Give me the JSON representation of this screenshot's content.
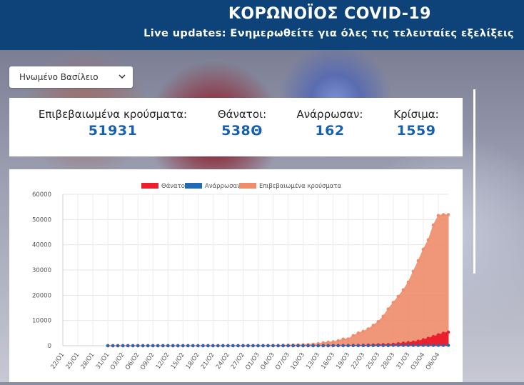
{
  "header": {
    "title": "ΚΟΡΩΝΟΪΟΣ COVID-19",
    "subtitle": "Live updates: Ενημερωθείτε για όλες τις τελευταίες εξελίξεις"
  },
  "country_select": {
    "value": "Ηνωμένο Βασίλειο"
  },
  "stats": [
    {
      "label": "Επιβεβαιωμένα κρούσματα:",
      "value": "51931"
    },
    {
      "label": "Θάνατοι:",
      "value": "538Θ"
    },
    {
      "label": "Ανάρρωσαν:",
      "value": "162"
    },
    {
      "label": "Κρίσιμα:",
      "value": "1559"
    }
  ],
  "colors": {
    "header": "#0d4379",
    "deaths": "#ec1f2c",
    "recovered": "#1f6bb5",
    "confirmed": "#f08c6b",
    "accent_text": "#1660ad"
  },
  "chart_data": {
    "type": "area",
    "ylim": [
      0,
      60000
    ],
    "yticks": [
      "0",
      "10000",
      "20000",
      "30000",
      "40000",
      "50000",
      "60000"
    ],
    "xtick_labels": [
      "22/Ο1",
      "25/Ο1",
      "28/Ο1",
      "31/Ο1",
      "Ο3/Ο2",
      "Ο6/Ο2",
      "Ο9/Ο2",
      "12/Ο2",
      "15/Ο2",
      "18/Ο2",
      "21/Ο2",
      "24/Ο2",
      "27/Ο2",
      "Ο1/Ο3",
      "Ο4/Ο3",
      "Ο7/Ο3",
      "1Ο/Ο3",
      "13/Ο3",
      "16/Ο3",
      "19/Ο3",
      "22/Ο3",
      "25/Ο3",
      "28/Ο3",
      "31/Ο3",
      "Ο3/Ο4",
      "Ο6/Ο4"
    ],
    "legend_position": "top",
    "series": [
      {
        "name": "Θάνατοι",
        "color": "#ec1f2c",
        "start_index": 9,
        "values": [
          0,
          0,
          0,
          0,
          0,
          0,
          0,
          0,
          0,
          0,
          0,
          0,
          0,
          0,
          0,
          0,
          0,
          0,
          0,
          0,
          0,
          0,
          0,
          0,
          0,
          0,
          0,
          0,
          0,
          0,
          0,
          0,
          0,
          0,
          0,
          0,
          0,
          0,
          1,
          2,
          3,
          6,
          8,
          10,
          11,
          21,
          35,
          55,
          71,
          104,
          144,
          177,
          233,
          281,
          335,
          422,
          465,
          578,
          759,
          1019,
          1228,
          1408,
          1789,
          2352,
          2921,
          3605,
          4313,
          4934,
          5373
        ]
      },
      {
        "name": "Ανάρρωσαν",
        "color": "#1f6bb5",
        "start_index": 9,
        "values": [
          0,
          0,
          0,
          0,
          0,
          0,
          0,
          0,
          0,
          0,
          0,
          0,
          0,
          0,
          0,
          0,
          0,
          0,
          0,
          0,
          0,
          0,
          0,
          0,
          0,
          0,
          0,
          0,
          0,
          0,
          0,
          0,
          0,
          0,
          0,
          0,
          0,
          8,
          8,
          8,
          8,
          8,
          8,
          8,
          18,
          18,
          18,
          18,
          18,
          18,
          18,
          18,
          20,
          52,
          65,
          65,
          65,
          135,
          135,
          135,
          135,
          135,
          135,
          135,
          135,
          135,
          135,
          135,
          162
        ]
      },
      {
        "name": "Επιβεβαιωμένα κρούσματα",
        "color": "#f08c6b",
        "start_index": 9,
        "values": [
          2,
          2,
          2,
          2,
          2,
          2,
          2,
          2,
          2,
          2,
          3,
          3,
          8,
          8,
          9,
          9,
          9,
          9,
          9,
          9,
          9,
          9,
          9,
          9,
          9,
          13,
          13,
          13,
          19,
          23,
          36,
          40,
          51,
          85,
          115,
          163,
          206,
          273,
          321,
          373,
          456,
          590,
          798,
          1140,
          1391,
          1543,
          1950,
          2626,
          2689,
          3983,
          5018,
          5683,
          6650,
          8077,
          9529,
          11658,
          14543,
          17089,
          19522,
          22141,
          25150,
          29474,
          33718,
          38168,
          41903,
          47806,
          51608,
          51931,
          51931
        ]
      }
    ]
  }
}
